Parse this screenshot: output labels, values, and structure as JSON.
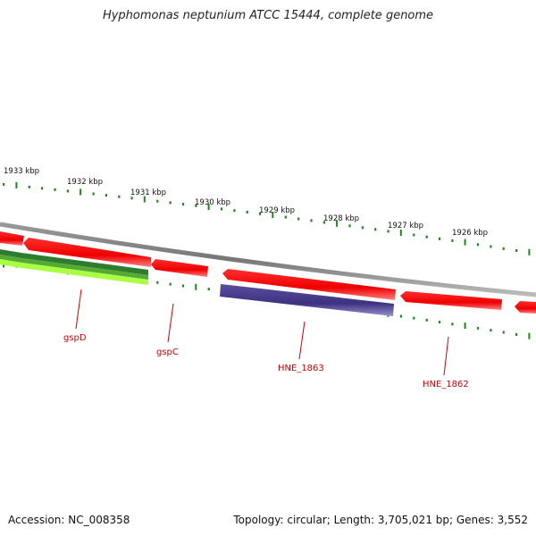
{
  "title": "Hyphomonas neptunium ATCC 15444, complete genome",
  "footer": {
    "accession": "Accession: NC_008358",
    "summary": "Topology: circular; Length: 3,705,021 bp; Genes: 3,552"
  },
  "scale_labels": [
    "1933 kbp",
    "1932 kbp",
    "1931 kbp",
    "1930 kbp",
    "1929 kbp",
    "1928 kbp",
    "1927 kbp",
    "1926 kbp"
  ],
  "gene_labels": [
    "gspD",
    "gspC",
    "HNE_1863",
    "HNE_1862"
  ],
  "colors": {
    "forward_gene": "#ff0000",
    "reverse_gene_light": "#99ff33",
    "reverse_gene_dark": "#228822",
    "reverse_gene_purple": "#4a3f8a",
    "backbone": "#888888",
    "tick": "#1a8a1a",
    "label": "#cc0000"
  }
}
